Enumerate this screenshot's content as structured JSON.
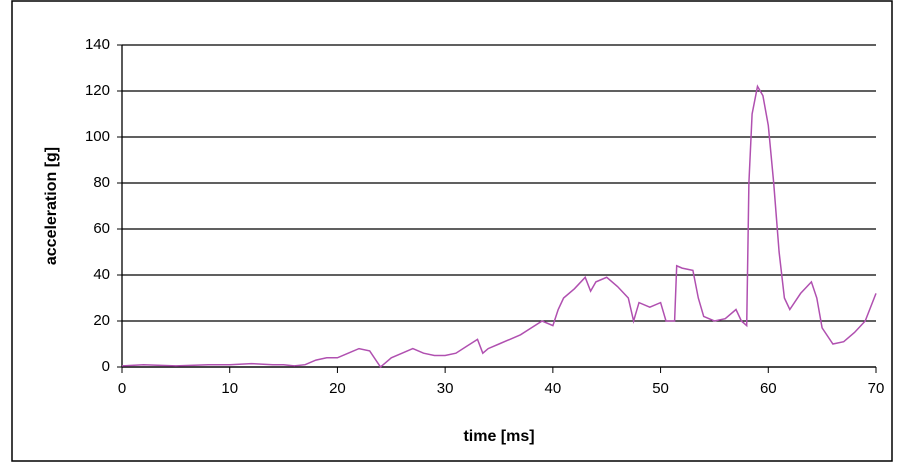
{
  "chart_data": {
    "type": "line",
    "xlabel": "time [ms]",
    "ylabel": "acceleration [g]",
    "x": [
      0,
      2,
      5,
      8,
      10,
      12,
      14,
      15,
      16,
      17,
      18,
      19,
      20,
      21,
      22,
      23,
      24,
      24.5,
      25,
      26,
      27,
      28,
      29,
      30,
      31,
      32,
      33,
      33.5,
      34,
      35,
      36,
      37,
      38,
      39,
      40,
      40.5,
      41,
      42,
      43,
      43.5,
      44,
      45,
      46,
      47,
      47.5,
      48,
      49,
      50,
      50.5,
      51,
      51.3,
      51.5,
      52,
      53,
      53.5,
      54,
      55,
      56,
      57,
      57.5,
      58,
      58.2,
      58.5,
      59,
      59.5,
      60,
      60.5,
      61,
      61.5,
      62,
      63,
      64,
      64.5,
      65,
      66,
      67,
      68,
      69,
      70
    ],
    "values": [
      0.5,
      1,
      0.5,
      1,
      1,
      1.5,
      1,
      1,
      0.5,
      1,
      3,
      4,
      4,
      6,
      8,
      7,
      0,
      2,
      4,
      6,
      8,
      6,
      5,
      5,
      6,
      9,
      12,
      6,
      8,
      10,
      12,
      14,
      17,
      20,
      18,
      25,
      30,
      34,
      39,
      33,
      37,
      39,
      35,
      30,
      20,
      28,
      26,
      28,
      20,
      20,
      20,
      44,
      43,
      42,
      30,
      22,
      20,
      21,
      25,
      20,
      18,
      80,
      110,
      122,
      118,
      105,
      80,
      50,
      30,
      25,
      32,
      37,
      30,
      17,
      10,
      11,
      15,
      20,
      32
    ],
    "color": "#b050b0",
    "xlim": [
      0,
      70
    ],
    "xticks": [
      0,
      10,
      20,
      30,
      40,
      50,
      60,
      70
    ],
    "ylim": [
      0,
      140
    ],
    "yticks": [
      0,
      20,
      40,
      60,
      80,
      100,
      120,
      140
    ],
    "grid": true
  }
}
